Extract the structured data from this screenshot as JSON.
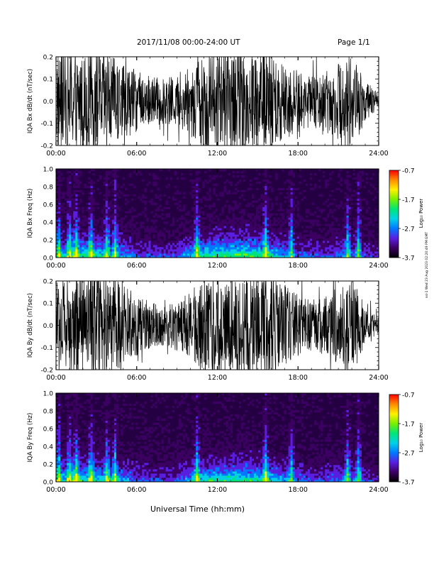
{
  "header": {
    "title": "2017/11/08  00:00-24:00 UT",
    "page": "Page 1/1"
  },
  "footer": {
    "xlabel": "Universal Time (hh:mm)"
  },
  "stamp": "ssl-1 Wed 23 Aug 2023 02:20:49 PM GMT",
  "colors": {
    "trace": "#000000",
    "background": "#ffffff",
    "spectrogram_bg": "#240042"
  },
  "colorscale": [
    "#000000",
    "#3c0063",
    "#5a1ee0",
    "#0078ff",
    "#00d2e6",
    "#00e678",
    "#78f000",
    "#fff000",
    "#ff8c00",
    "#ff0000"
  ],
  "chart_data": [
    {
      "id": "bx-dbdt",
      "type": "line",
      "ylabel": "IQA Bx dB/dt (nT/sec)",
      "ylim": [
        -0.2,
        0.2
      ],
      "yticks": [
        "-0.2",
        "-0.1",
        "0.0",
        "0.1",
        "0.2"
      ],
      "xlim": [
        0,
        24
      ],
      "xticks": [
        "00:00",
        "06:00",
        "12:00",
        "18:00",
        "24:00"
      ],
      "envelope_hours": [
        0,
        1,
        2,
        3,
        4,
        5,
        6,
        7,
        8,
        9,
        10,
        11,
        12,
        13,
        14,
        15,
        16,
        17,
        18,
        19,
        20,
        21,
        22,
        23,
        24
      ],
      "envelope_amplitude": [
        0.2,
        0.2,
        0.2,
        0.2,
        0.18,
        0.15,
        0.12,
        0.1,
        0.09,
        0.1,
        0.13,
        0.2,
        0.2,
        0.2,
        0.2,
        0.2,
        0.2,
        0.16,
        0.12,
        0.1,
        0.12,
        0.15,
        0.2,
        0.08,
        0.03
      ]
    },
    {
      "id": "bx-freq",
      "type": "heatmap",
      "ylabel": "IQA Bx Freq (Hz)",
      "ylim": [
        0.0,
        1.0
      ],
      "yticks": [
        "0.0",
        "0.2",
        "0.4",
        "0.6",
        "0.8",
        "1.0"
      ],
      "xlim": [
        0,
        24
      ],
      "xticks": [
        "00:00",
        "06:00",
        "12:00",
        "18:00",
        "24:00"
      ],
      "colorbar": {
        "label": "Log₁₀ Power",
        "min": -3.7,
        "max": -0.7,
        "ticks": [
          "-0.7",
          "-1.7",
          "-2.7",
          "-3.7"
        ]
      },
      "activity_hours": [
        0,
        1,
        2,
        3,
        4,
        5,
        6,
        7,
        8,
        9,
        10,
        11,
        12,
        13,
        14,
        15,
        16,
        17,
        18,
        19,
        20,
        21,
        22,
        23,
        24
      ],
      "activity_level": [
        0.5,
        0.6,
        0.65,
        0.6,
        0.55,
        0.45,
        0.35,
        0.3,
        0.28,
        0.32,
        0.5,
        0.65,
        0.7,
        0.72,
        0.75,
        0.7,
        0.6,
        0.45,
        0.35,
        0.3,
        0.3,
        0.4,
        0.4,
        0.3,
        0.2
      ],
      "bursts_hours": [
        0.2,
        1.0,
        1.5,
        2.6,
        3.8,
        4.4,
        10.5,
        15.6,
        17.5,
        21.7,
        22.5
      ]
    },
    {
      "id": "by-dbdt",
      "type": "line",
      "ylabel": "IQA By dB/dt (nT/sec)",
      "ylim": [
        -0.2,
        0.2
      ],
      "yticks": [
        "-0.2",
        "-0.1",
        "0.0",
        "0.1",
        "0.2"
      ],
      "xlim": [
        0,
        24
      ],
      "xticks": [
        "00:00",
        "06:00",
        "12:00",
        "18:00",
        "24:00"
      ],
      "envelope_hours": [
        0,
        1,
        2,
        3,
        4,
        5,
        6,
        7,
        8,
        9,
        10,
        11,
        12,
        13,
        14,
        15,
        16,
        17,
        18,
        19,
        20,
        21,
        22,
        23,
        24
      ],
      "envelope_amplitude": [
        0.2,
        0.2,
        0.2,
        0.2,
        0.2,
        0.16,
        0.12,
        0.09,
        0.08,
        0.1,
        0.13,
        0.2,
        0.2,
        0.2,
        0.2,
        0.2,
        0.2,
        0.16,
        0.12,
        0.1,
        0.12,
        0.15,
        0.2,
        0.07,
        0.03
      ]
    },
    {
      "id": "by-freq",
      "type": "heatmap",
      "ylabel": "IQA By Freq (Hz)",
      "ylim": [
        0.0,
        1.0
      ],
      "yticks": [
        "0.0",
        "0.2",
        "0.4",
        "0.6",
        "0.8",
        "1.0"
      ],
      "xlim": [
        0,
        24
      ],
      "xticks": [
        "00:00",
        "06:00",
        "12:00",
        "18:00",
        "24:00"
      ],
      "colorbar": {
        "label": "Log₁₀ Power",
        "min": -3.7,
        "max": -0.7,
        "ticks": [
          "-0.7",
          "-1.7",
          "-2.7",
          "-3.7"
        ]
      },
      "activity_hours": [
        0,
        1,
        2,
        3,
        4,
        5,
        6,
        7,
        8,
        9,
        10,
        11,
        12,
        13,
        14,
        15,
        16,
        17,
        18,
        19,
        20,
        21,
        22,
        23,
        24
      ],
      "activity_level": [
        0.5,
        0.6,
        0.65,
        0.6,
        0.55,
        0.45,
        0.35,
        0.3,
        0.28,
        0.32,
        0.5,
        0.6,
        0.62,
        0.65,
        0.68,
        0.62,
        0.55,
        0.45,
        0.35,
        0.3,
        0.3,
        0.4,
        0.4,
        0.3,
        0.2
      ],
      "bursts_hours": [
        0.2,
        1.0,
        1.5,
        2.6,
        3.8,
        4.4,
        10.5,
        15.6,
        17.5,
        21.7,
        22.5
      ]
    }
  ]
}
